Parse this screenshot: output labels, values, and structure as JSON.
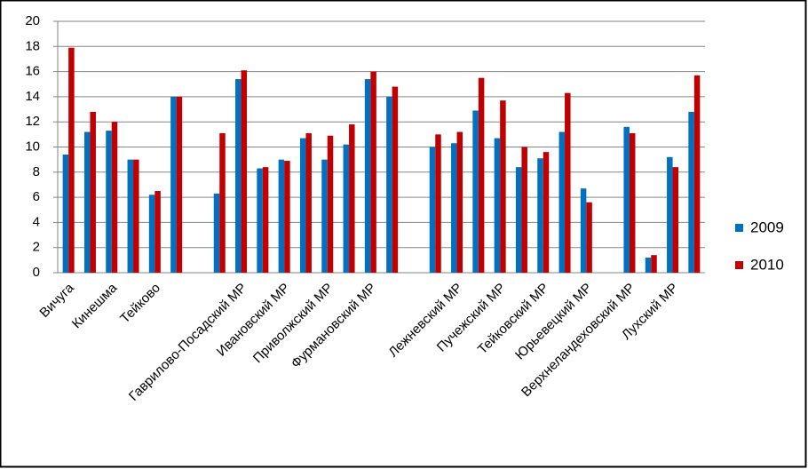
{
  "chart_data": {
    "type": "bar",
    "categories": [
      "Вичуга",
      null,
      "Кинешма",
      null,
      "Тейково",
      null,
      null,
      null,
      "Гаврилово-Посадский МР",
      null,
      "Ивановский МР",
      null,
      "Приволжский МР",
      null,
      "Фурмановский МР",
      null,
      null,
      null,
      "Лежневский МР",
      null,
      "Пучежский МР",
      null,
      "Тейковский МР",
      null,
      "Юрьевецкий МР",
      null,
      "Верхнеландеховский МР",
      null,
      "Лухский МР",
      null
    ],
    "series": [
      {
        "name": "2009",
        "color": "#0070c0",
        "values": [
          9.4,
          11.2,
          11.3,
          9,
          6.2,
          14,
          null,
          6.3,
          15.4,
          8.3,
          9,
          10.7,
          9,
          10.2,
          15.4,
          14,
          null,
          10,
          10.3,
          12.9,
          10.7,
          8.4,
          9.1,
          11.2,
          6.7,
          null,
          11.6,
          1.2,
          9.2,
          12.8
        ]
      },
      {
        "name": "2010",
        "color": "#c00000",
        "values": [
          17.9,
          12.8,
          12,
          9,
          6.5,
          14,
          null,
          11.1,
          16.1,
          8.4,
          8.9,
          11.1,
          10.9,
          11.8,
          16,
          14.8,
          null,
          11,
          11.2,
          15.5,
          13.7,
          10,
          9.6,
          14.3,
          5.6,
          null,
          11.1,
          1.4,
          8.4,
          15.7
        ]
      }
    ],
    "ylim": [
      0,
      20
    ],
    "yticks": [
      0,
      2,
      4,
      6,
      8,
      10,
      12,
      14,
      16,
      18,
      20
    ],
    "grid": true,
    "legend": "right"
  }
}
